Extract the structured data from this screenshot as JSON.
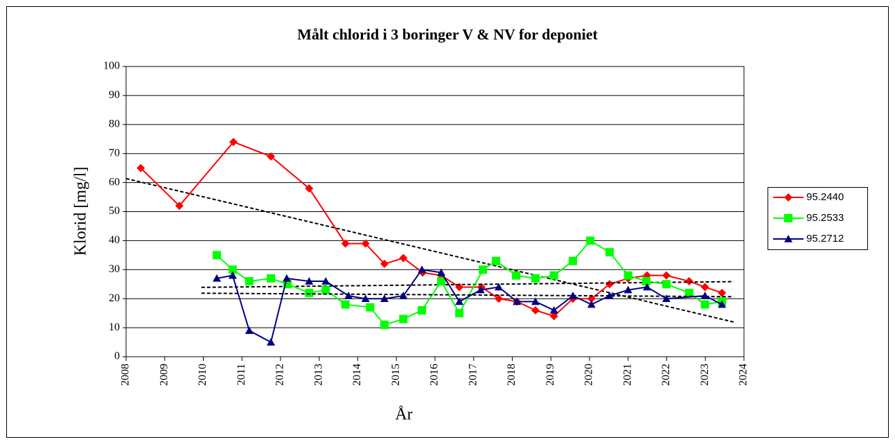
{
  "chart_data": {
    "type": "line",
    "title": "Målt chlorid i 3 boringer V & NV for deponiet",
    "x_label": "År",
    "y_label": "Klorid [mg/l]",
    "xlim": [
      2008,
      2024
    ],
    "xticks": [
      2008,
      2009,
      2010,
      2011,
      2012,
      2013,
      2014,
      2015,
      2016,
      2017,
      2018,
      2019,
      2020,
      2021,
      2022,
      2023,
      2024
    ],
    "ylim": [
      0,
      100
    ],
    "yticks": [
      0,
      10,
      20,
      30,
      40,
      50,
      60,
      70,
      80,
      90,
      100
    ],
    "grid": true,
    "trendline": true,
    "legend": "right",
    "series": [
      {
        "name": "95.2440",
        "color": "#ff0000",
        "marker": "diamond",
        "x": [
          2008.38,
          2009.38,
          2010.78,
          2011.75,
          2012.74,
          2013.68,
          2014.2,
          2014.69,
          2015.18,
          2015.68,
          2016.16,
          2016.63,
          2017.2,
          2017.65,
          2018.12,
          2018.6,
          2019.08,
          2019.57,
          2020.05,
          2020.52,
          2021.0,
          2021.49,
          2021.99,
          2022.58,
          2022.99,
          2023.43
        ],
        "values": [
          65,
          52,
          74,
          69,
          58,
          39,
          39,
          32,
          34,
          29,
          28,
          24,
          24,
          20,
          19,
          16,
          14,
          20,
          20,
          25,
          27,
          28,
          28,
          26,
          24,
          22
        ]
      },
      {
        "name": "95.2533",
        "color": "#00ff00",
        "marker": "square",
        "x": [
          2010.35,
          2010.76,
          2011.19,
          2011.75,
          2012.18,
          2012.74,
          2013.17,
          2013.68,
          2014.32,
          2014.69,
          2015.18,
          2015.66,
          2016.16,
          2016.63,
          2017.24,
          2017.58,
          2018.1,
          2018.6,
          2019.08,
          2019.57,
          2020.02,
          2020.52,
          2021.0,
          2021.47,
          2021.99,
          2022.58,
          2022.99,
          2023.43
        ],
        "values": [
          35,
          30,
          26,
          27,
          25,
          22,
          23,
          18,
          17,
          11,
          13,
          16,
          26,
          15,
          30,
          33,
          28,
          27,
          28,
          33,
          40,
          36,
          28,
          26,
          25,
          22,
          18,
          19
        ]
      },
      {
        "name": "95.2712",
        "color": "#000080",
        "marker": "triangle",
        "x": [
          2010.35,
          2010.76,
          2011.19,
          2011.75,
          2012.16,
          2012.74,
          2013.17,
          2013.76,
          2014.2,
          2014.69,
          2015.18,
          2015.66,
          2016.16,
          2016.63,
          2017.18,
          2017.65,
          2018.12,
          2018.6,
          2019.08,
          2019.57,
          2020.05,
          2020.52,
          2021.0,
          2021.49,
          2021.99,
          2022.99,
          2023.43
        ],
        "values": [
          27,
          28,
          9,
          5,
          27,
          26,
          26,
          21,
          20,
          20,
          21,
          30,
          29,
          19,
          23,
          24,
          19,
          19,
          16,
          21,
          18,
          21,
          23,
          24,
          20,
          21,
          18
        ]
      }
    ]
  }
}
